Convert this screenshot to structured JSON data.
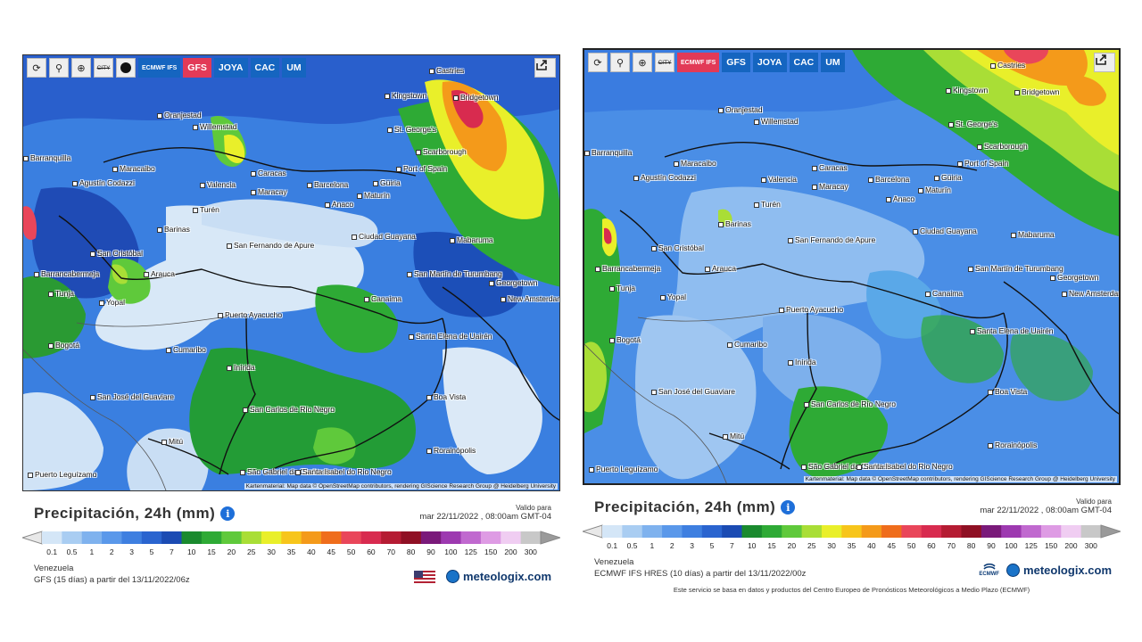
{
  "left": {
    "toolbar": {
      "refresh_icon": "refresh-icon",
      "pin_icon": "location-pin-icon",
      "zoom_icon": "zoom-icon",
      "city_label": "CITY",
      "dot_icon": "dot-icon",
      "models": [
        "ECMWF IFS",
        "GFS",
        "JOYA",
        "CAC",
        "UM"
      ],
      "active_model": "GFS"
    },
    "share_icon": "share-icon",
    "attribution": "Kartenmaterial: Map data © OpenStreetMap contributors, rendering GIScience Research Group @ Heidelberg University",
    "cities": [
      "Castries",
      "Kingstown",
      "Bridgetown",
      "Oranjestad",
      "Willemstad",
      "St. George's",
      "Scarborough",
      "Port of Spain",
      "Caracas",
      "Valencia",
      "Maracay",
      "Barcelona",
      "Güiria",
      "Maturín",
      "Anaco",
      "Maracaibo",
      "Barranquilla",
      "Agustín Codazzi",
      "Turén",
      "Barinas",
      "San Fernando de Apure",
      "Ciudad Guayana",
      "Mabaruma",
      "San Cristóbal",
      "Arauca",
      "Barrancabermeja",
      "San Martín de Turumbang",
      "Georgetown",
      "New Amsterdam",
      "Canaima",
      "Tunja",
      "Yopal",
      "Puerto Ayacucho",
      "Bogotá",
      "Cumaribo",
      "Santa Elena de Uairén",
      "Inírida",
      "San José del Guaviare",
      "Boa Vista",
      "San Carlos de Río Negro",
      "Mitú",
      "Rorainópolis",
      "Puerto Leguízamo",
      "São Gabriel da Cachoeira",
      "Santa Isabel do Rio Negro"
    ],
    "title": "Precipitación, 24h (mm)",
    "info_icon": "info-icon",
    "valid_label": "Valido para",
    "valid_date": "mar 22/11/2022 , 08:00am GMT-04",
    "region": "Venezuela",
    "model_info": "GFS (15 días) a partir del 13/11/2022/06z",
    "flag_icon": "us-flag-icon",
    "brand": "meteologix.com"
  },
  "right": {
    "toolbar": {
      "refresh_icon": "refresh-icon",
      "pin_icon": "location-pin-icon",
      "zoom_icon": "zoom-icon",
      "city_label": "CITY",
      "models": [
        "ECMWF IFS",
        "GFS",
        "JOYA",
        "CAC",
        "UM"
      ],
      "active_model": "ECMWF IFS"
    },
    "share_icon": "share-icon",
    "attribution": "Kartenmaterial: Map data © OpenStreetMap contributors, rendering GIScience Research Group @ Heidelberg University",
    "cities": [
      "Castries",
      "Kingstown",
      "Bridgetown",
      "Oranjestad",
      "Willemstad",
      "St. George's",
      "Scarborough",
      "Port of Spain",
      "Caracas",
      "Valencia",
      "Maracay",
      "Barcelona",
      "Güiria",
      "Maturín",
      "Anaco",
      "Maracaibo",
      "Barranquilla",
      "Agustín Codazzi",
      "Turén",
      "Barinas",
      "San Fernando de Apure",
      "Ciudad Guayana",
      "Mabaruma",
      "San Cristóbal",
      "Arauca",
      "Barrancabermeja",
      "San Martín de Turumbang",
      "Georgetown",
      "New Amsterdam",
      "Canaima",
      "Tunja",
      "Yopal",
      "Puerto Ayacucho",
      "Bogotá",
      "Cumaribo",
      "Santa Elena de Uairén",
      "Inírida",
      "San José del Guaviare",
      "Boa Vista",
      "San Carlos de Río Negro",
      "Mitú",
      "Rorainópolis",
      "Puerto Leguízamo",
      "São Gabriel da Cachoeira",
      "Santa Isabel do Rio Negro"
    ],
    "title": "Precipitación, 24h (mm)",
    "info_icon": "info-icon",
    "valid_label": "Valido para",
    "valid_date": "mar 22/11/2022 , 08:00am GMT-04",
    "region": "Venezuela",
    "model_info": "ECMWF IFS HRES (10 días) a partir del 13/11/2022/00z",
    "ecmwf_logo": "ECMWF",
    "brand": "meteologix.com",
    "note": "Este servicio se basa en datos y productos del Centro Europeo de Pronósticos Meteorológicos a Medio Plazo (ECMWF)"
  },
  "legend": {
    "ticks": [
      "0.1",
      "0.5",
      "1",
      "2",
      "3",
      "5",
      "7",
      "10",
      "15",
      "20",
      "25",
      "30",
      "35",
      "40",
      "45",
      "50",
      "60",
      "70",
      "80",
      "90",
      "100",
      "125",
      "150",
      "200",
      "300"
    ],
    "colors": [
      "#d4e6f7",
      "#a9cdf2",
      "#7fb2ee",
      "#5a98ea",
      "#3e7fe0",
      "#2a64cf",
      "#1b4bb3",
      "#1a8a2e",
      "#2eaa35",
      "#5fc93b",
      "#a9de36",
      "#e9ef2a",
      "#f7c51b",
      "#f49a1a",
      "#ef6d1c",
      "#e9465a",
      "#d82b4f",
      "#b51c33",
      "#8f1024",
      "#7a1a7a",
      "#9d39b0",
      "#c069cf",
      "#de9be4",
      "#f0cdf2",
      "#c8c8c8"
    ]
  }
}
